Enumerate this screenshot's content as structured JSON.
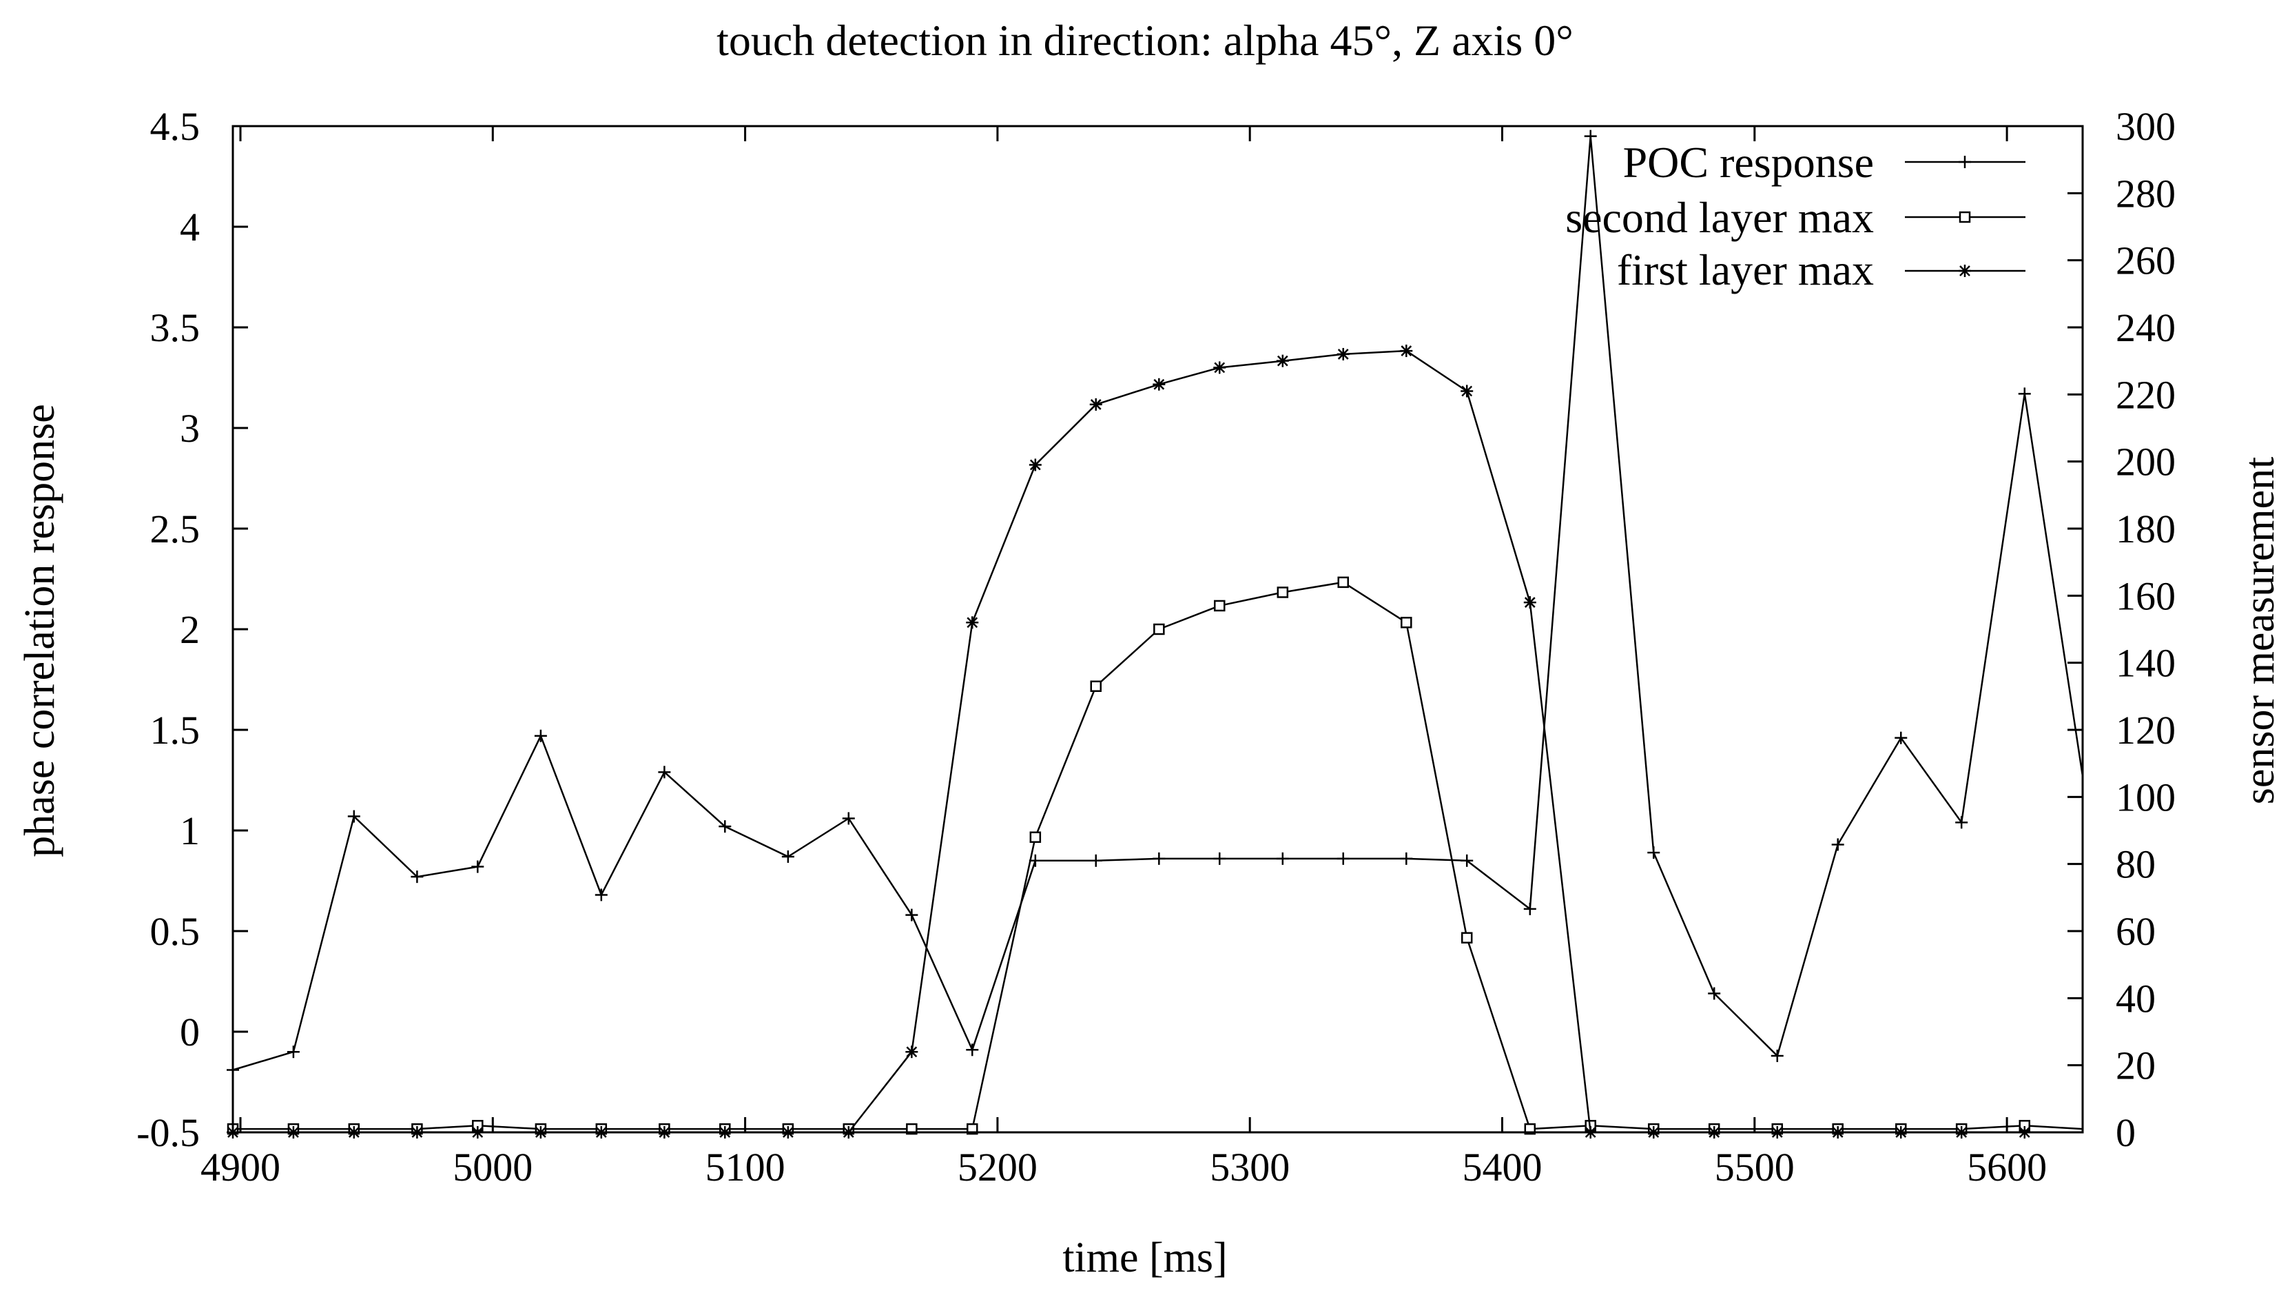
{
  "chart_data": {
    "type": "line",
    "title": "touch detection in direction: alpha 45°, Z axis 0°",
    "xlabel": "time [ms]",
    "ylabel": "phase correlation response",
    "y2label": "sensor measurement",
    "xlim": [
      4897,
      5630
    ],
    "ylim": [
      -0.5,
      4.5
    ],
    "y2lim": [
      0,
      300
    ],
    "xticks": [
      "4900",
      "5000",
      "5100",
      "5200",
      "5300",
      "5400",
      "5500",
      "5600"
    ],
    "yticks": [
      "-0.5",
      "0",
      "0.5",
      "1",
      "1.5",
      "2",
      "2.5",
      "3",
      "3.5",
      "4",
      "4.5"
    ],
    "y2ticks": [
      "0",
      "20",
      "40",
      "60",
      "80",
      "100",
      "120",
      "140",
      "160",
      "180",
      "200",
      "220",
      "240",
      "260",
      "280",
      "300"
    ],
    "legend_position": "top-right",
    "x": [
      4897,
      4921,
      4945,
      4970,
      4994,
      5019,
      5043,
      5068,
      5092,
      5117,
      5141,
      5166,
      5190,
      5215,
      5239,
      5264,
      5288,
      5313,
      5337,
      5362,
      5386,
      5411,
      5435,
      5460,
      5484,
      5509,
      5533,
      5558,
      5582,
      5607,
      5630
    ],
    "series": [
      {
        "name": "POC response",
        "axis": "left",
        "marker": "plus",
        "values": [
          -0.19,
          -0.1,
          1.07,
          0.77,
          0.82,
          1.47,
          0.68,
          1.29,
          1.02,
          0.87,
          1.06,
          0.58,
          -0.09,
          0.85,
          0.85,
          0.86,
          0.86,
          0.86,
          0.86,
          0.86,
          0.85,
          0.61,
          4.45,
          0.89,
          0.19,
          -0.12,
          0.93,
          1.46,
          1.04,
          3.17,
          1.27
        ]
      },
      {
        "name": "second layer max",
        "axis": "right",
        "marker": "square",
        "values": [
          1,
          1,
          1,
          1,
          2,
          1,
          1,
          1,
          1,
          1,
          1,
          1,
          1,
          88,
          133,
          150,
          157,
          161,
          164,
          152,
          58,
          1,
          2,
          1,
          1,
          1,
          1,
          1,
          1,
          2,
          1
        ]
      },
      {
        "name": "first layer max",
        "axis": "right",
        "marker": "star",
        "values": [
          0,
          0,
          0,
          0,
          0,
          0,
          0,
          0,
          0,
          0,
          0,
          24,
          152,
          199,
          217,
          223,
          228,
          230,
          232,
          233,
          221,
          158,
          0,
          0,
          0,
          0,
          0,
          0,
          0,
          0,
          0
        ]
      }
    ]
  }
}
